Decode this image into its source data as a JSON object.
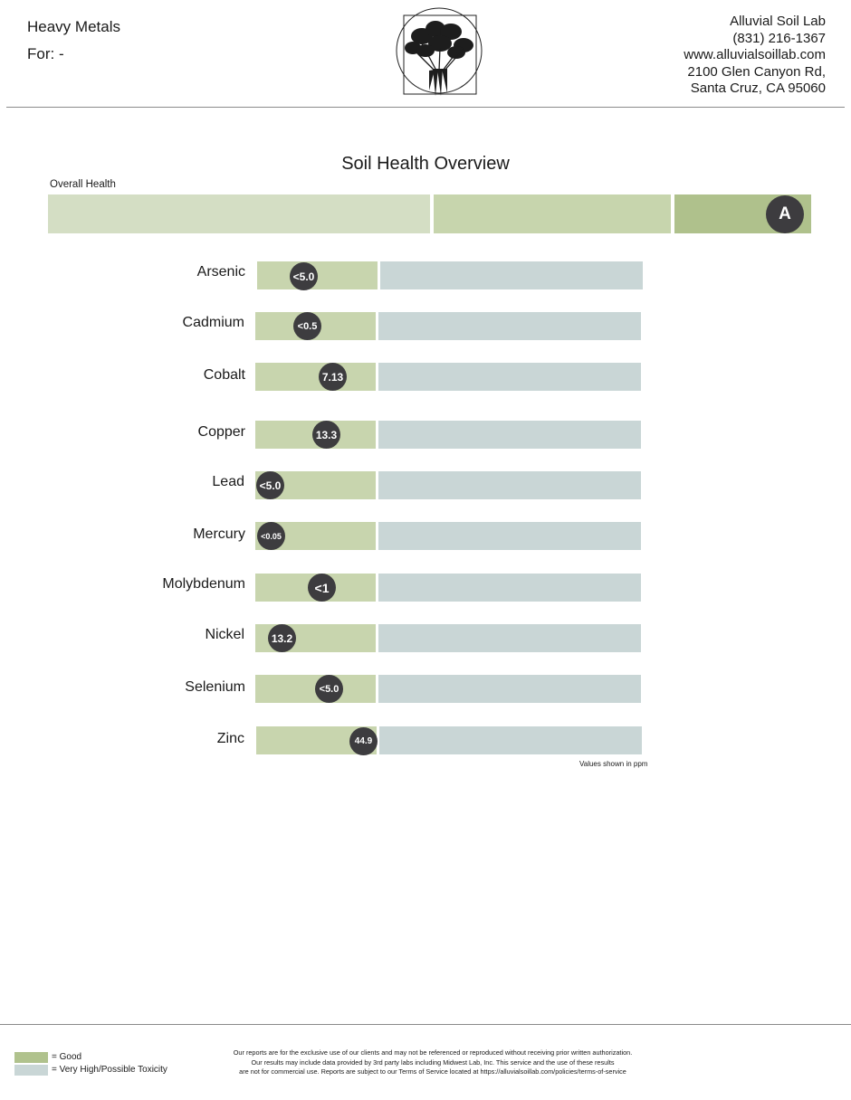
{
  "header": {
    "title": "Heavy Metals",
    "for_label": "For: -",
    "lab": {
      "name": "Alluvial Soil Lab",
      "phone": "(831) 216-1367",
      "website": "www.alluvialsoillab.com",
      "address_line1": "2100 Glen Canyon Rd,",
      "address_line2": "Santa Cruz, CA 95060"
    }
  },
  "overview": {
    "title": "Soil Health Overview",
    "overall_label": "Overall Health",
    "grade": "A"
  },
  "metals": [
    {
      "name": "Arsenic",
      "value": "<5.0"
    },
    {
      "name": "Cadmium",
      "value": "<0.5"
    },
    {
      "name": "Cobalt",
      "value": "7.13"
    },
    {
      "name": "Copper",
      "value": "13.3"
    },
    {
      "name": "Lead",
      "value": "<5.0"
    },
    {
      "name": "Mercury",
      "value": "<0.05"
    },
    {
      "name": "Molybdenum",
      "value": "<1"
    },
    {
      "name": "Nickel",
      "value": "13.2"
    },
    {
      "name": "Selenium",
      "value": "<5.0"
    },
    {
      "name": "Zinc",
      "value": "44.9"
    }
  ],
  "units_note": "Values shown in ppm",
  "legend": {
    "good": "= Good",
    "toxic": "= Very High/Possible Toxicity"
  },
  "footer": {
    "line1": "Our reports are for the exclusive use of our clients and may not be referenced or reproduced without receiving prior written authorization.",
    "line2": "Our results may include data provided by 3rd party labs including Midwest Lab, Inc. This service and the use of these results",
    "line3": "are not for commercial use. Reports are subject to our Terms of Service located at https://alluvialsoillab.com/policies/terms-of-service"
  },
  "colors": {
    "good": "#c8d5ae",
    "toxic": "#c9d6d6",
    "overall_light": "#d4dec4",
    "overall_mid": "#c7d5ad",
    "overall_dark": "#afc18c",
    "badge": "#3d3c3f"
  },
  "icons": {
    "logo": "carrot-bunch-logo-icon"
  }
}
